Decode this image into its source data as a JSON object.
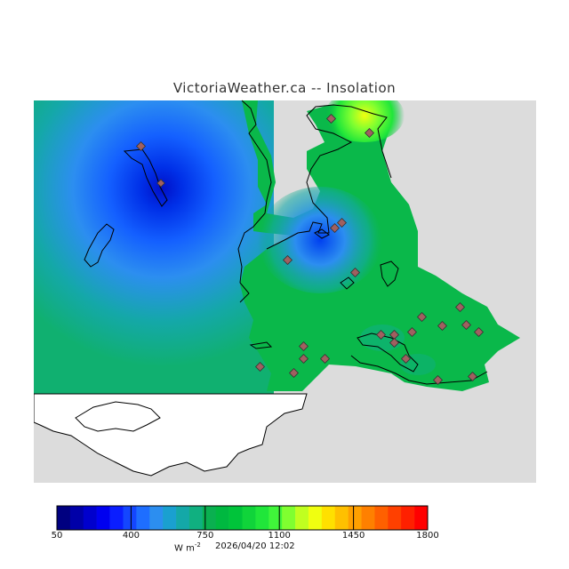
{
  "title": "VictoriaWeather.ca -- Insolation",
  "units": {
    "base": "W m",
    "exponent": "-2"
  },
  "timestamp": "2026/04/20 12:02",
  "colorbar": {
    "ticks": [
      "50",
      "400",
      "750",
      "1100",
      "1450",
      "1800"
    ],
    "min": 50,
    "max": 1800,
    "colors": [
      "#000080",
      "#0000a8",
      "#0000cd",
      "#0000f0",
      "#0a1eff",
      "#1446ff",
      "#1e6eff",
      "#2c8ef0",
      "#1aa0d0",
      "#14a8a8",
      "#10b080",
      "#0ab050",
      "#00b840",
      "#00c43a",
      "#10d43a",
      "#20e63a",
      "#40f53a",
      "#80ff30",
      "#c0ff20",
      "#f0ff10",
      "#ffe000",
      "#ffc000",
      "#ffa000",
      "#ff8000",
      "#ff6000",
      "#ff4000",
      "#ff2000",
      "#ff0000"
    ]
  },
  "legend_colors": {
    "no_data": "#dcdcdc",
    "land_outline": "#000000",
    "station_marker": "#a06060"
  }
}
